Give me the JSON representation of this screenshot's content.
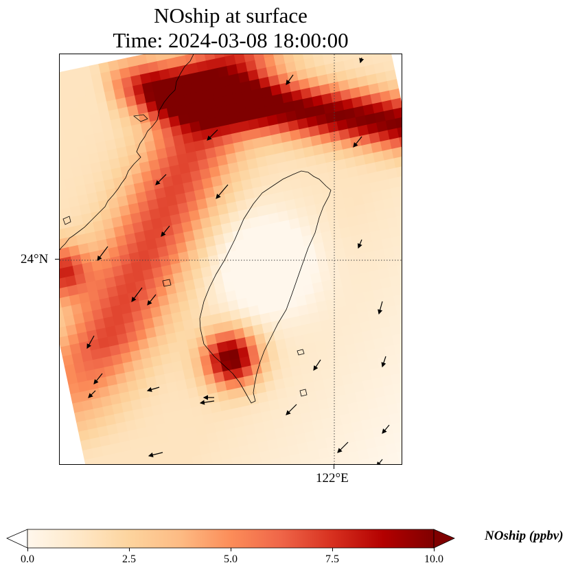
{
  "title": {
    "line1": "NOship at surface",
    "line2": "Time: 2024-03-08 18:00:00"
  },
  "axes": {
    "lat_label": "24°N",
    "lon_label": "122°E"
  },
  "colorbar": {
    "label": "NOship (ppbv)",
    "min": 0.0,
    "max": 10.0,
    "ticks": [
      "0.0",
      "2.5",
      "5.0",
      "7.5",
      "10.0"
    ],
    "extend": "both",
    "colormap": "OrRd",
    "colors": [
      "#fff7ec",
      "#fee8c8",
      "#fdd49e",
      "#fdbb84",
      "#fc8d59",
      "#ef6548",
      "#d7301f",
      "#b30000",
      "#7f0000"
    ]
  },
  "map": {
    "land_outline": "Taiwan and Fujian coastline",
    "gridlines": "dotted",
    "wind_vectors": true
  }
}
